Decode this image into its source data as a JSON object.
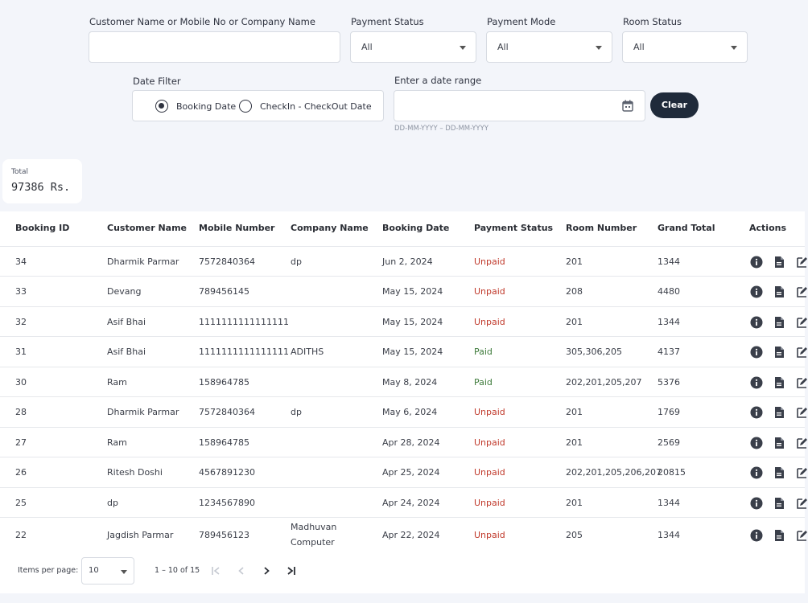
{
  "filters": {
    "customer_label": "Customer Name or Mobile No or Company Name",
    "customer_value": "",
    "payment_status_label": "Payment Status",
    "payment_status_value": "All",
    "payment_mode_label": "Payment Mode",
    "payment_mode_value": "All",
    "room_status_label": "Room Status",
    "room_status_value": "All",
    "date_filter_label": "Date Filter",
    "radio_booking": "Booking Date",
    "radio_checkin": "CheckIn - CheckOut Date",
    "date_range_label": "Enter a date range",
    "date_range_value": "",
    "date_hint": "DD-MM-YYYY – DD-MM-YYYY",
    "clear_label": "Clear"
  },
  "total": {
    "label": "Total",
    "value": "97386 Rs."
  },
  "table": {
    "headers": [
      "Booking ID",
      "Customer Name",
      "Mobile Number",
      "Company Name",
      "Booking Date",
      "Payment Status",
      "Room Number",
      "Grand Total",
      "Actions"
    ],
    "rows": [
      {
        "id": "34",
        "name": "Dharmik Parmar",
        "mobile": "7572840364",
        "company": "dp",
        "date": "Jun 2, 2024",
        "status": "Unpaid",
        "room": "201",
        "total": "1344"
      },
      {
        "id": "33",
        "name": "Devang",
        "mobile": "789456145",
        "company": "",
        "date": "May 15, 2024",
        "status": "Unpaid",
        "room": "208",
        "total": "4480"
      },
      {
        "id": "32",
        "name": "Asif Bhai",
        "mobile": "1111111111111111",
        "company": "",
        "date": "May 15, 2024",
        "status": "Unpaid",
        "room": "201",
        "total": "1344"
      },
      {
        "id": "31",
        "name": "Asif Bhai",
        "mobile": "1111111111111111",
        "company": "ADITHS",
        "date": "May 15, 2024",
        "status": "Paid",
        "room": "305,306,205",
        "total": "4137"
      },
      {
        "id": "30",
        "name": "Ram",
        "mobile": "158964785",
        "company": "",
        "date": "May 8, 2024",
        "status": "Paid",
        "room": "202,201,205,207",
        "total": "5376"
      },
      {
        "id": "28",
        "name": "Dharmik Parmar",
        "mobile": "7572840364",
        "company": "dp",
        "date": "May 6, 2024",
        "status": "Unpaid",
        "room": "201",
        "total": "1769"
      },
      {
        "id": "27",
        "name": "Ram",
        "mobile": "158964785",
        "company": "",
        "date": "Apr 28, 2024",
        "status": "Unpaid",
        "room": "201",
        "total": "2569"
      },
      {
        "id": "26",
        "name": "Ritesh Doshi",
        "mobile": "4567891230",
        "company": "",
        "date": "Apr 25, 2024",
        "status": "Unpaid",
        "room": "202,201,205,206,207",
        "total": "20815"
      },
      {
        "id": "25",
        "name": "dp",
        "mobile": "1234567890",
        "company": "",
        "date": "Apr 24, 2024",
        "status": "Unpaid",
        "room": "201",
        "total": "1344"
      },
      {
        "id": "22",
        "name": "Jagdish Parmar",
        "mobile": "789456123",
        "company": "Madhuvan Computer",
        "date": "Apr 22, 2024",
        "status": "Unpaid",
        "room": "205",
        "total": "1344"
      }
    ]
  },
  "pagination": {
    "items_label": "Items per page:",
    "page_size": "10",
    "range": "1 – 10 of 15"
  },
  "colors": {
    "unpaid": "#c0392b",
    "paid": "#3d7a3a",
    "button": "#1f2a3a"
  },
  "icons": {
    "info": "info-icon",
    "document": "document-icon",
    "edit": "edit-icon",
    "calendar": "calendar-icon"
  }
}
